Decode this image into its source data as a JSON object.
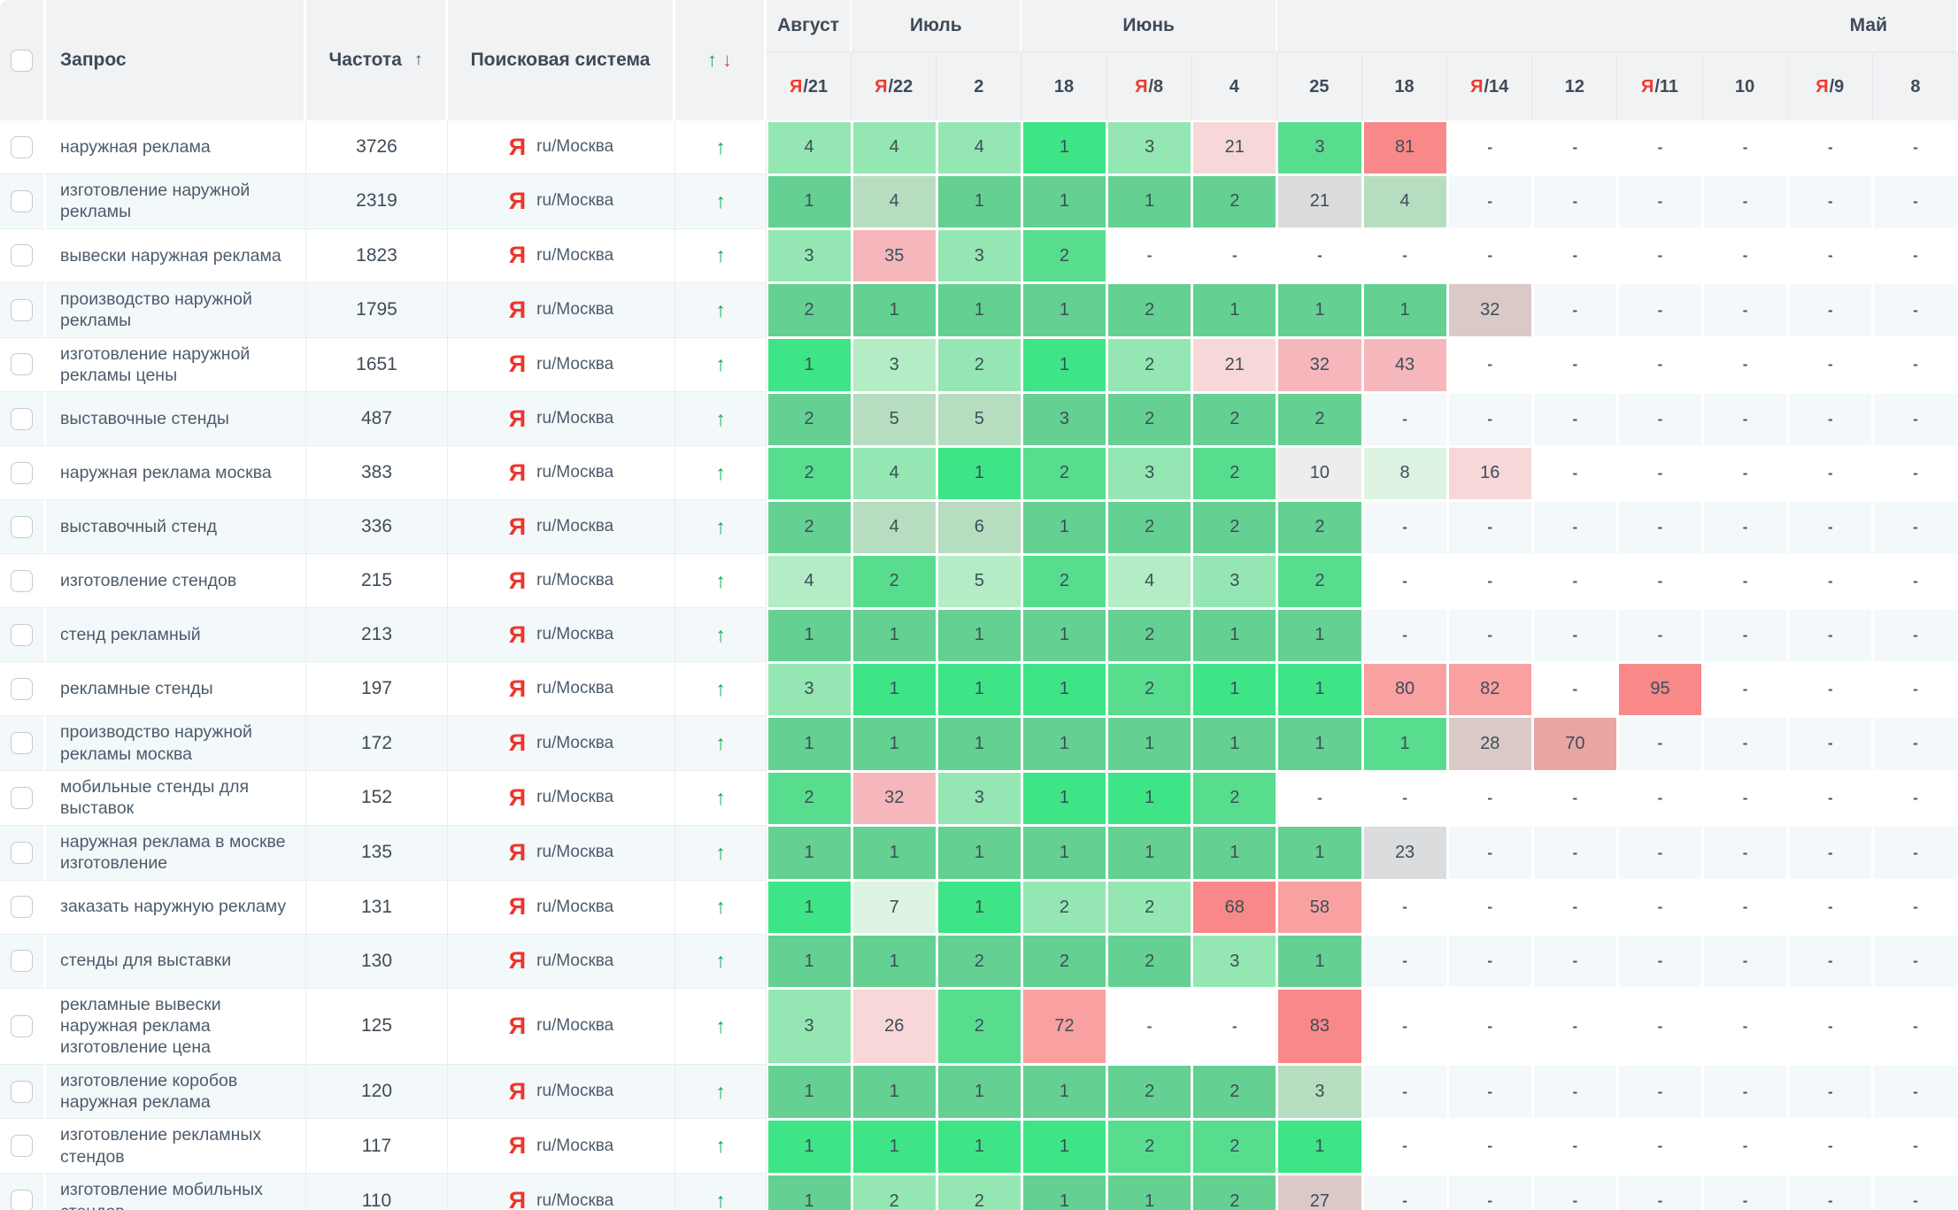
{
  "header": {
    "query_label": "Запрос",
    "frequency_label": "Частота",
    "frequency_sort_icon": "↑",
    "search_engine_label": "Поисковая система",
    "dynamics_up_icon": "↑",
    "dynamics_down_icon": "↓",
    "months": [
      {
        "label": "Август",
        "span": 1
      },
      {
        "label": "Июль",
        "span": 2
      },
      {
        "label": "Июнь",
        "span": 3
      },
      {
        "label": "Май",
        "span": 8
      }
    ],
    "dates": [
      "Я/21",
      "Я/22",
      "2",
      "18",
      "Я/8",
      "4",
      "25",
      "18",
      "Я/14",
      "12",
      "Я/11",
      "10",
      "Я/9",
      "8"
    ]
  },
  "search_engine": {
    "icon": "Я",
    "label": "ru/Москва"
  },
  "dynamics_arrow": "↑",
  "colors": {
    "yandex_red": "#ee352a",
    "up_green": "#0fae54",
    "down_red": "#e4494e",
    "header_bg": "#f1f2f3",
    "alt_row_bg": "#f3f8fa"
  },
  "palette": {
    "G1": "#3ee586",
    "G2": "#58dd8f",
    "G3": "#64d092",
    "G4": "#94e7b2",
    "G5": "#b4edc5",
    "G6": "#b7ddc0",
    "G7": "#dcf4e1",
    "R1": "#f98888",
    "R2": "#f9a0a0",
    "R3": "#f5b7bc",
    "R4": "#f8d7d9",
    "R5": "#e9a5a1",
    "N1": "#dbdcdd",
    "N2": "#ededee",
    "N3": "#dac9c7"
  },
  "rows": [
    {
      "query": "наружная реклама",
      "frequency": "3726",
      "cells": [
        [
          "4",
          "G4"
        ],
        [
          "4",
          "G4"
        ],
        [
          "4",
          "G4"
        ],
        [
          "1",
          "G1"
        ],
        [
          "3",
          "G4"
        ],
        [
          "21",
          "R4"
        ],
        [
          "3",
          "G2"
        ],
        [
          "81",
          "R1"
        ],
        [
          "-",
          ""
        ],
        [
          "-",
          ""
        ],
        [
          "-",
          ""
        ],
        [
          "-",
          ""
        ],
        [
          "-",
          ""
        ],
        [
          "-",
          ""
        ]
      ]
    },
    {
      "query": "изготовление наружной рекламы",
      "frequency": "2319",
      "cells": [
        [
          "1",
          "G3"
        ],
        [
          "4",
          "G6"
        ],
        [
          "1",
          "G3"
        ],
        [
          "1",
          "G3"
        ],
        [
          "1",
          "G3"
        ],
        [
          "2",
          "G3"
        ],
        [
          "21",
          "N1"
        ],
        [
          "4",
          "G6"
        ],
        [
          "-",
          ""
        ],
        [
          "-",
          ""
        ],
        [
          "-",
          ""
        ],
        [
          "-",
          ""
        ],
        [
          "-",
          ""
        ],
        [
          "-",
          ""
        ]
      ]
    },
    {
      "query": "вывески наружная реклама",
      "frequency": "1823",
      "cells": [
        [
          "3",
          "G4"
        ],
        [
          "35",
          "R3"
        ],
        [
          "3",
          "G4"
        ],
        [
          "2",
          "G2"
        ],
        [
          "-",
          ""
        ],
        [
          "-",
          ""
        ],
        [
          "-",
          ""
        ],
        [
          "-",
          ""
        ],
        [
          "-",
          ""
        ],
        [
          "-",
          ""
        ],
        [
          "-",
          ""
        ],
        [
          "-",
          ""
        ],
        [
          "-",
          ""
        ],
        [
          "-",
          ""
        ]
      ]
    },
    {
      "query": "производство наружной рекламы",
      "frequency": "1795",
      "cells": [
        [
          "2",
          "G3"
        ],
        [
          "1",
          "G3"
        ],
        [
          "1",
          "G3"
        ],
        [
          "1",
          "G3"
        ],
        [
          "2",
          "G3"
        ],
        [
          "1",
          "G3"
        ],
        [
          "1",
          "G3"
        ],
        [
          "1",
          "G3"
        ],
        [
          "32",
          "N3"
        ],
        [
          "-",
          ""
        ],
        [
          "-",
          ""
        ],
        [
          "-",
          ""
        ],
        [
          "-",
          ""
        ],
        [
          "-",
          ""
        ]
      ]
    },
    {
      "query": "изготовление наружной рекламы цены",
      "frequency": "1651",
      "cells": [
        [
          "1",
          "G1"
        ],
        [
          "3",
          "G5"
        ],
        [
          "2",
          "G4"
        ],
        [
          "1",
          "G1"
        ],
        [
          "2",
          "G4"
        ],
        [
          "21",
          "R4"
        ],
        [
          "32",
          "R3"
        ],
        [
          "43",
          "R3"
        ],
        [
          "-",
          ""
        ],
        [
          "-",
          ""
        ],
        [
          "-",
          ""
        ],
        [
          "-",
          ""
        ],
        [
          "-",
          ""
        ],
        [
          "-",
          ""
        ]
      ]
    },
    {
      "query": "выставочные стенды",
      "frequency": "487",
      "cells": [
        [
          "2",
          "G3"
        ],
        [
          "5",
          "G6"
        ],
        [
          "5",
          "G6"
        ],
        [
          "3",
          "G3"
        ],
        [
          "2",
          "G3"
        ],
        [
          "2",
          "G3"
        ],
        [
          "2",
          "G3"
        ],
        [
          "-",
          ""
        ],
        [
          "-",
          ""
        ],
        [
          "-",
          ""
        ],
        [
          "-",
          ""
        ],
        [
          "-",
          ""
        ],
        [
          "-",
          ""
        ],
        [
          "-",
          ""
        ]
      ]
    },
    {
      "query": "наружная реклама москва",
      "frequency": "383",
      "cells": [
        [
          "2",
          "G2"
        ],
        [
          "4",
          "G4"
        ],
        [
          "1",
          "G1"
        ],
        [
          "2",
          "G2"
        ],
        [
          "3",
          "G4"
        ],
        [
          "2",
          "G2"
        ],
        [
          "10",
          "N2"
        ],
        [
          "8",
          "G7"
        ],
        [
          "16",
          "R4"
        ],
        [
          "-",
          ""
        ],
        [
          "-",
          ""
        ],
        [
          "-",
          ""
        ],
        [
          "-",
          ""
        ],
        [
          "-",
          ""
        ]
      ]
    },
    {
      "query": "выставочный стенд",
      "frequency": "336",
      "cells": [
        [
          "2",
          "G3"
        ],
        [
          "4",
          "G6"
        ],
        [
          "6",
          "G6"
        ],
        [
          "1",
          "G3"
        ],
        [
          "2",
          "G3"
        ],
        [
          "2",
          "G3"
        ],
        [
          "2",
          "G3"
        ],
        [
          "-",
          ""
        ],
        [
          "-",
          ""
        ],
        [
          "-",
          ""
        ],
        [
          "-",
          ""
        ],
        [
          "-",
          ""
        ],
        [
          "-",
          ""
        ],
        [
          "-",
          ""
        ]
      ]
    },
    {
      "query": "изготовление стендов",
      "frequency": "215",
      "cells": [
        [
          "4",
          "G5"
        ],
        [
          "2",
          "G2"
        ],
        [
          "5",
          "G5"
        ],
        [
          "2",
          "G2"
        ],
        [
          "4",
          "G5"
        ],
        [
          "3",
          "G4"
        ],
        [
          "2",
          "G2"
        ],
        [
          "-",
          ""
        ],
        [
          "-",
          ""
        ],
        [
          "-",
          ""
        ],
        [
          "-",
          ""
        ],
        [
          "-",
          ""
        ],
        [
          "-",
          ""
        ],
        [
          "-",
          ""
        ]
      ]
    },
    {
      "query": "стенд рекламный",
      "frequency": "213",
      "cells": [
        [
          "1",
          "G3"
        ],
        [
          "1",
          "G3"
        ],
        [
          "1",
          "G3"
        ],
        [
          "1",
          "G3"
        ],
        [
          "2",
          "G3"
        ],
        [
          "1",
          "G3"
        ],
        [
          "1",
          "G3"
        ],
        [
          "-",
          ""
        ],
        [
          "-",
          ""
        ],
        [
          "-",
          ""
        ],
        [
          "-",
          ""
        ],
        [
          "-",
          ""
        ],
        [
          "-",
          ""
        ],
        [
          "-",
          ""
        ]
      ]
    },
    {
      "query": "рекламные стенды",
      "frequency": "197",
      "cells": [
        [
          "3",
          "G4"
        ],
        [
          "1",
          "G1"
        ],
        [
          "1",
          "G1"
        ],
        [
          "1",
          "G1"
        ],
        [
          "2",
          "G2"
        ],
        [
          "1",
          "G1"
        ],
        [
          "1",
          "G1"
        ],
        [
          "80",
          "R2"
        ],
        [
          "82",
          "R2"
        ],
        [
          "-",
          ""
        ],
        [
          "95",
          "R1"
        ],
        [
          "-",
          ""
        ],
        [
          "-",
          ""
        ],
        [
          "-",
          ""
        ]
      ]
    },
    {
      "query": "производство наружной рекламы москва",
      "frequency": "172",
      "cells": [
        [
          "1",
          "G3"
        ],
        [
          "1",
          "G3"
        ],
        [
          "1",
          "G3"
        ],
        [
          "1",
          "G3"
        ],
        [
          "1",
          "G3"
        ],
        [
          "1",
          "G3"
        ],
        [
          "1",
          "G3"
        ],
        [
          "1",
          "G2"
        ],
        [
          "28",
          "N3"
        ],
        [
          "70",
          "R5"
        ],
        [
          "-",
          ""
        ],
        [
          "-",
          ""
        ],
        [
          "-",
          ""
        ],
        [
          "-",
          ""
        ]
      ]
    },
    {
      "query": "мобильные стенды для выставок",
      "frequency": "152",
      "cells": [
        [
          "2",
          "G2"
        ],
        [
          "32",
          "R3"
        ],
        [
          "3",
          "G4"
        ],
        [
          "1",
          "G1"
        ],
        [
          "1",
          "G1"
        ],
        [
          "2",
          "G2"
        ],
        [
          "-",
          ""
        ],
        [
          "-",
          ""
        ],
        [
          "-",
          ""
        ],
        [
          "-",
          ""
        ],
        [
          "-",
          ""
        ],
        [
          "-",
          ""
        ],
        [
          "-",
          ""
        ],
        [
          "-",
          ""
        ]
      ]
    },
    {
      "query": "наружная реклама в москве изготовление",
      "frequency": "135",
      "cells": [
        [
          "1",
          "G3"
        ],
        [
          "1",
          "G3"
        ],
        [
          "1",
          "G3"
        ],
        [
          "1",
          "G3"
        ],
        [
          "1",
          "G3"
        ],
        [
          "1",
          "G3"
        ],
        [
          "1",
          "G3"
        ],
        [
          "23",
          "N1"
        ],
        [
          "-",
          ""
        ],
        [
          "-",
          ""
        ],
        [
          "-",
          ""
        ],
        [
          "-",
          ""
        ],
        [
          "-",
          ""
        ],
        [
          "-",
          ""
        ]
      ]
    },
    {
      "query": "заказать наружную рекламу",
      "frequency": "131",
      "cells": [
        [
          "1",
          "G1"
        ],
        [
          "7",
          "G7"
        ],
        [
          "1",
          "G1"
        ],
        [
          "2",
          "G4"
        ],
        [
          "2",
          "G4"
        ],
        [
          "68",
          "R1"
        ],
        [
          "58",
          "R2"
        ],
        [
          "-",
          ""
        ],
        [
          "-",
          ""
        ],
        [
          "-",
          ""
        ],
        [
          "-",
          ""
        ],
        [
          "-",
          ""
        ],
        [
          "-",
          ""
        ],
        [
          "-",
          ""
        ]
      ]
    },
    {
      "query": "стенды для выставки",
      "frequency": "130",
      "cells": [
        [
          "1",
          "G3"
        ],
        [
          "1",
          "G3"
        ],
        [
          "2",
          "G3"
        ],
        [
          "2",
          "G3"
        ],
        [
          "2",
          "G3"
        ],
        [
          "3",
          "G4"
        ],
        [
          "1",
          "G3"
        ],
        [
          "-",
          ""
        ],
        [
          "-",
          ""
        ],
        [
          "-",
          ""
        ],
        [
          "-",
          ""
        ],
        [
          "-",
          ""
        ],
        [
          "-",
          ""
        ],
        [
          "-",
          ""
        ]
      ]
    },
    {
      "query": "рекламные вывески наружная реклама изготовление цена",
      "frequency": "125",
      "cells": [
        [
          "3",
          "G4"
        ],
        [
          "26",
          "R4"
        ],
        [
          "2",
          "G2"
        ],
        [
          "72",
          "R2"
        ],
        [
          "-",
          ""
        ],
        [
          "-",
          ""
        ],
        [
          "83",
          "R1"
        ],
        [
          "-",
          ""
        ],
        [
          "-",
          ""
        ],
        [
          "-",
          ""
        ],
        [
          "-",
          ""
        ],
        [
          "-",
          ""
        ],
        [
          "-",
          ""
        ],
        [
          "-",
          ""
        ]
      ]
    },
    {
      "query": "изготовление коробов наружная реклама",
      "frequency": "120",
      "cells": [
        [
          "1",
          "G3"
        ],
        [
          "1",
          "G3"
        ],
        [
          "1",
          "G3"
        ],
        [
          "1",
          "G3"
        ],
        [
          "2",
          "G3"
        ],
        [
          "2",
          "G3"
        ],
        [
          "3",
          "G6"
        ],
        [
          "-",
          ""
        ],
        [
          "-",
          ""
        ],
        [
          "-",
          ""
        ],
        [
          "-",
          ""
        ],
        [
          "-",
          ""
        ],
        [
          "-",
          ""
        ],
        [
          "-",
          ""
        ]
      ]
    },
    {
      "query": "изготовление рекламных стендов",
      "frequency": "117",
      "cells": [
        [
          "1",
          "G1"
        ],
        [
          "1",
          "G1"
        ],
        [
          "1",
          "G1"
        ],
        [
          "1",
          "G1"
        ],
        [
          "2",
          "G2"
        ],
        [
          "2",
          "G2"
        ],
        [
          "1",
          "G1"
        ],
        [
          "-",
          ""
        ],
        [
          "-",
          ""
        ],
        [
          "-",
          ""
        ],
        [
          "-",
          ""
        ],
        [
          "-",
          ""
        ],
        [
          "-",
          ""
        ],
        [
          "-",
          ""
        ]
      ]
    },
    {
      "query": "изготовление мобильных стендов",
      "frequency": "110",
      "cells": [
        [
          "1",
          "G3"
        ],
        [
          "2",
          "G4"
        ],
        [
          "2",
          "G4"
        ],
        [
          "1",
          "G3"
        ],
        [
          "1",
          "G3"
        ],
        [
          "2",
          "G3"
        ],
        [
          "27",
          "N3"
        ],
        [
          "-",
          ""
        ],
        [
          "-",
          ""
        ],
        [
          "-",
          ""
        ],
        [
          "-",
          ""
        ],
        [
          "-",
          ""
        ],
        [
          "-",
          ""
        ],
        [
          "-",
          ""
        ]
      ]
    }
  ]
}
